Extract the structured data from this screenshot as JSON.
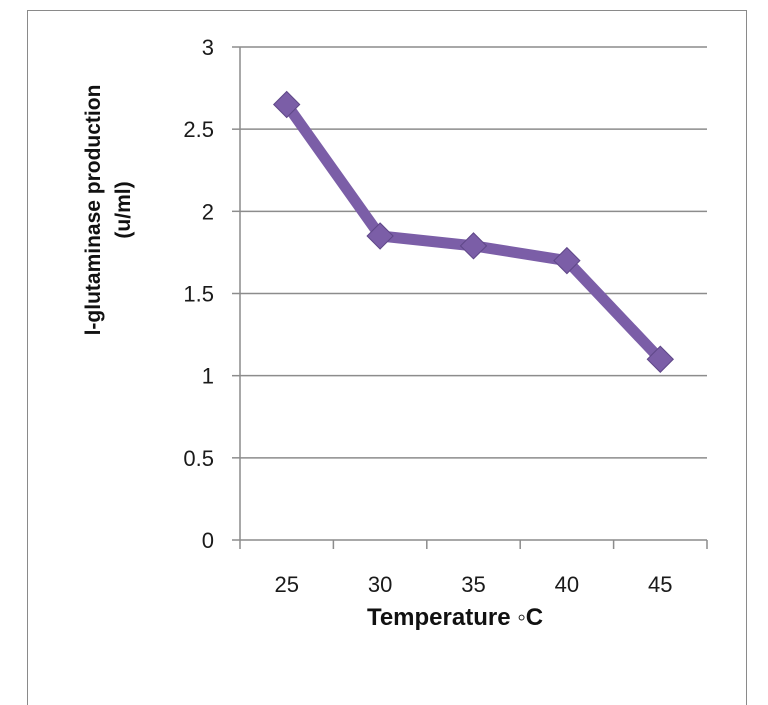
{
  "chart_data": {
    "type": "line",
    "categories": [
      "25",
      "30",
      "35",
      "40",
      "45"
    ],
    "series": [
      {
        "values": [
          2.65,
          1.85,
          1.79,
          1.7,
          1.1
        ],
        "color": "#7b5ea7"
      }
    ],
    "xlabel": "Temperature ◦C",
    "ylabel_line1": "l-glutaminase  production",
    "ylabel_line2": "(u/ml)",
    "ylim": [
      0,
      3
    ],
    "yticks": [
      "0",
      "0.5",
      "1",
      "1.5",
      "2",
      "2.5",
      "3"
    ],
    "grid": "horizontal",
    "marker": "diamond",
    "legend": "none"
  }
}
